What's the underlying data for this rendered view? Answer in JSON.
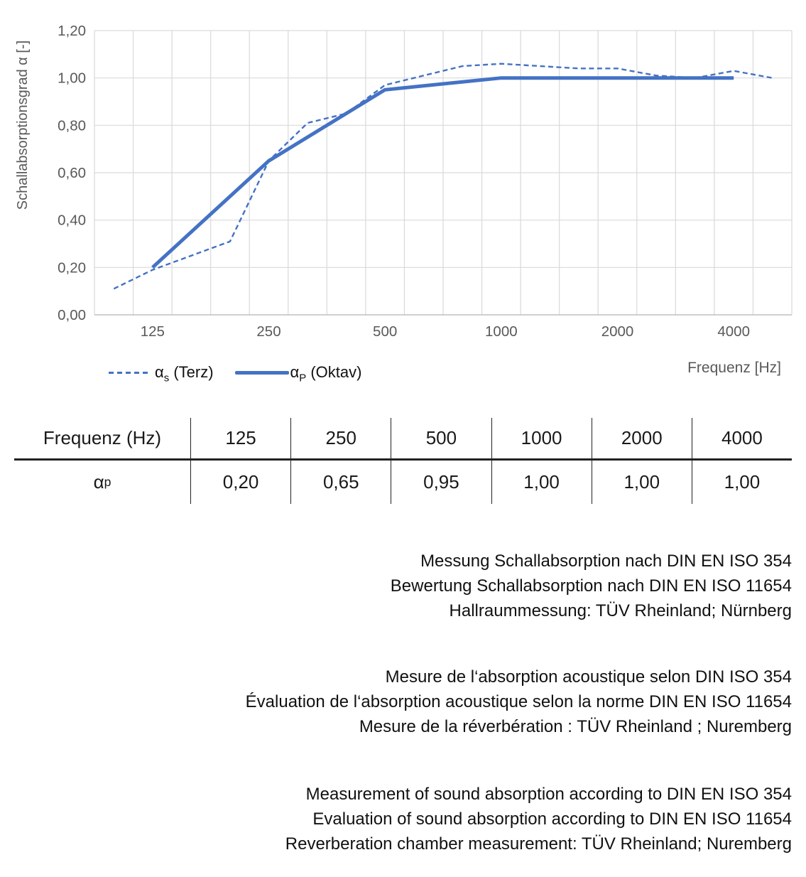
{
  "colors": {
    "line_blue": "#4472C4",
    "grid": "#D9D9D9",
    "axis_line": "#BFBFBF",
    "axis_text": "#595959",
    "text": "#1A1A1A"
  },
  "chart": {
    "ylabel": "Schallabsorptionsgrad α [-]",
    "xlabel": "Frequenz [Hz]"
  },
  "chart_data": {
    "type": "line",
    "title": "",
    "xlabel": "Frequenz [Hz]",
    "ylabel": "Schallabsorptionsgrad α [-]",
    "ylim": [
      0,
      1.2
    ],
    "x_categories_third_octave": [
      100,
      125,
      160,
      200,
      250,
      315,
      400,
      500,
      630,
      800,
      1000,
      1250,
      1600,
      2000,
      2500,
      3150,
      4000,
      5000
    ],
    "y_tick_values": [
      0,
      0.2,
      0.4,
      0.6,
      0.8,
      1.0,
      1.2
    ],
    "y_tick_labels": [
      "0,00",
      "0,20",
      "0,40",
      "0,60",
      "0,80",
      "1,00",
      "1,20"
    ],
    "x_tick_values": [
      125,
      250,
      500,
      1000,
      2000,
      4000
    ],
    "grid": true,
    "legend_position": "bottom-left",
    "series": [
      {
        "name": "αs (Terz)",
        "style": "dashed",
        "values": [
          0.11,
          0.19,
          0.25,
          0.31,
          0.65,
          0.81,
          0.85,
          0.97,
          1.01,
          1.05,
          1.06,
          1.05,
          1.04,
          1.04,
          1.01,
          1.0,
          1.03,
          1.0
        ]
      },
      {
        "name": "αP (Oktav)",
        "style": "solid",
        "x": [
          125,
          250,
          500,
          1000,
          2000,
          4000
        ],
        "values": [
          0.2,
          0.65,
          0.95,
          1.0,
          1.0,
          1.0
        ]
      }
    ]
  },
  "legend": {
    "items": [
      {
        "alpha": "α",
        "sub": "s",
        "rest": " (Terz)"
      },
      {
        "alpha": "α",
        "sub": "P",
        "rest": " (Oktav)"
      }
    ]
  },
  "table": {
    "header_label": "Frequenz (Hz)",
    "row_label_alpha": "α",
    "row_label_sub": "p",
    "frequencies": [
      "125",
      "250",
      "500",
      "1000",
      "2000",
      "4000"
    ],
    "values": [
      "0,20",
      "0,65",
      "0,95",
      "1,00",
      "1,00",
      "1,00"
    ]
  },
  "notes": {
    "de": {
      "line1": "Messung Schallabsorption nach DIN EN ISO 354",
      "line2": "Bewertung Schallabsorption nach DIN EN ISO 11654",
      "line3": "Hallraummessung: TÜV Rheinland; Nürnberg"
    },
    "fr": {
      "line1": "Mesure de l‘absorption acoustique selon DIN ISO 354",
      "line2": "Évaluation de l‘absorption acoustique selon la norme DIN EN ISO 11654",
      "line3": "Mesure de la réverbération : TÜV Rheinland ; Nuremberg"
    },
    "en": {
      "line1": "Measurement of sound absorption according to DIN EN ISO 354",
      "line2": "Evaluation of sound absorption according to DIN EN ISO 11654",
      "line3": "Reverberation chamber measurement: TÜV Rheinland; Nuremberg"
    }
  }
}
